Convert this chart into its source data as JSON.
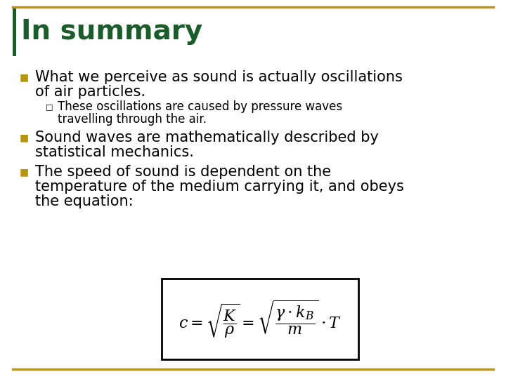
{
  "title": "In summary",
  "title_color": "#1a5c2a",
  "title_fontsize": 28,
  "background_color": "#ffffff",
  "border_color": "#b8960c",
  "bullet_color": "#b8960c",
  "text_color": "#000000",
  "text_fontsize": 15,
  "sub_text_fontsize": 12,
  "left_bar_color": "#1a5c2a",
  "bullet1_line1": "What we perceive as sound is actually oscillations",
  "bullet1_line2": "of air particles.",
  "sub_line1": "These oscillations are caused by pressure waves",
  "sub_line2": "travelling through the air.",
  "bullet2_line1": "Sound waves are mathematically described by",
  "bullet2_line2": "statistical mechanics.",
  "bullet3_line1": "The speed of sound is dependent on the",
  "bullet3_line2": "temperature of the medium carrying it, and obeys",
  "bullet3_line3": "the equation:"
}
